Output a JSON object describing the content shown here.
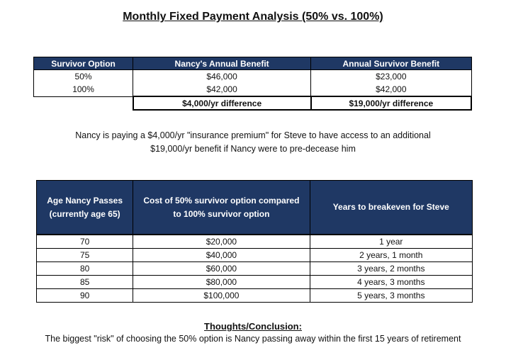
{
  "title": "Monthly Fixed Payment Analysis (50% vs. 100%)",
  "table1": {
    "headers": [
      "Survivor Option",
      "Nancy's Annual Benefit",
      "Annual Survivor Benefit"
    ],
    "rows": [
      [
        "50%",
        "$46,000",
        "$23,000"
      ],
      [
        "100%",
        "$42,000",
        "$42,000"
      ]
    ],
    "differences": [
      "$4,000/yr difference",
      "$19,000/yr difference"
    ]
  },
  "note": {
    "line1": "Nancy is paying a $4,000/yr \"insurance premium\" for Steve to have access to an additional",
    "line2": "$19,000/yr benefit if Nancy were to pre-decease him"
  },
  "table2": {
    "headers": {
      "col1_line1": "Age Nancy Passes",
      "col1_line2": "(currently age 65)",
      "col2_line1": "Cost of 50% survivor option compared",
      "col2_line2": "to 100% survivor option",
      "col3": "Years to breakeven for Steve"
    },
    "rows": [
      [
        "70",
        "$20,000",
        "1 year"
      ],
      [
        "75",
        "$40,000",
        "2 years, 1 month"
      ],
      [
        "80",
        "$60,000",
        "3 years, 2 months"
      ],
      [
        "85",
        "$80,000",
        "4 years, 3 months"
      ],
      [
        "90",
        "$100,000",
        "5 years, 3 months"
      ]
    ]
  },
  "conclusion": {
    "heading": "Thoughts/Conclusion:",
    "text": "The biggest \"risk\" of choosing the 50% option is Nancy passing away within the first 15 years of retirement"
  }
}
